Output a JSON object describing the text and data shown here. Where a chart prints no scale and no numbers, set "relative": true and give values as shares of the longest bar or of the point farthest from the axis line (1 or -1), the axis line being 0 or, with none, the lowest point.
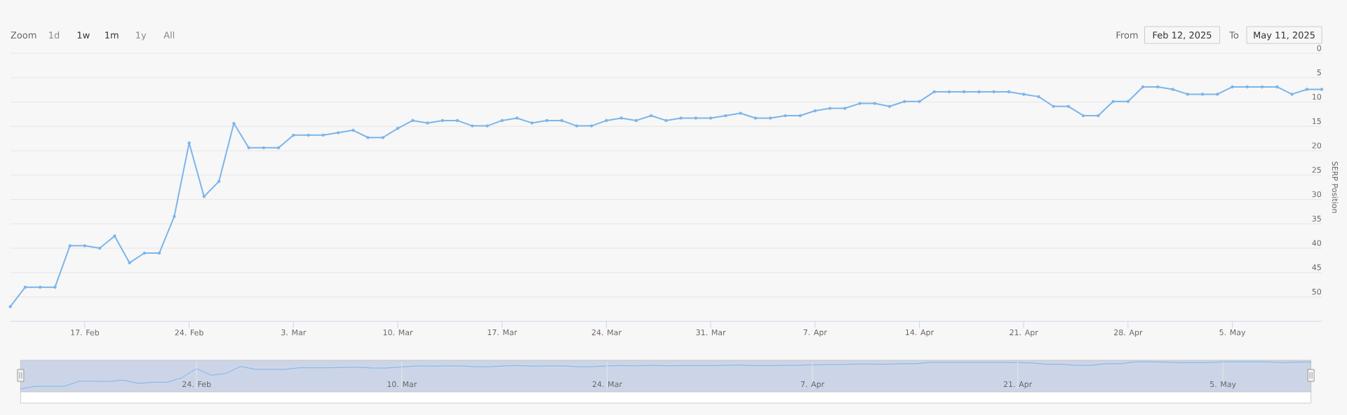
{
  "chart_data": [
    {
      "type": "line",
      "ylabel": "SERP Position",
      "x": [
        "2025-02-12",
        "2025-02-13",
        "2025-02-14",
        "2025-02-15",
        "2025-02-16",
        "2025-02-17",
        "2025-02-18",
        "2025-02-19",
        "2025-02-20",
        "2025-02-21",
        "2025-02-22",
        "2025-02-23",
        "2025-02-24",
        "2025-02-25",
        "2025-02-26",
        "2025-02-27",
        "2025-02-28",
        "2025-03-01",
        "2025-03-02",
        "2025-03-03",
        "2025-03-04",
        "2025-03-05",
        "2025-03-06",
        "2025-03-07",
        "2025-03-08",
        "2025-03-09",
        "2025-03-10",
        "2025-03-11",
        "2025-03-12",
        "2025-03-13",
        "2025-03-14",
        "2025-03-15",
        "2025-03-16",
        "2025-03-17",
        "2025-03-18",
        "2025-03-19",
        "2025-03-20",
        "2025-03-21",
        "2025-03-22",
        "2025-03-23",
        "2025-03-24",
        "2025-03-25",
        "2025-03-26",
        "2025-03-27",
        "2025-03-28",
        "2025-03-29",
        "2025-03-30",
        "2025-03-31",
        "2025-04-01",
        "2025-04-02",
        "2025-04-03",
        "2025-04-04",
        "2025-04-05",
        "2025-04-06",
        "2025-04-07",
        "2025-04-08",
        "2025-04-09",
        "2025-04-10",
        "2025-04-11",
        "2025-04-12",
        "2025-04-13",
        "2025-04-14",
        "2025-04-15",
        "2025-04-16",
        "2025-04-17",
        "2025-04-18",
        "2025-04-19",
        "2025-04-20",
        "2025-04-21",
        "2025-04-22",
        "2025-04-23",
        "2025-04-24",
        "2025-04-25",
        "2025-04-26",
        "2025-04-27",
        "2025-04-28",
        "2025-04-29",
        "2025-04-30",
        "2025-05-01",
        "2025-05-02",
        "2025-05-03",
        "2025-05-04",
        "2025-05-05",
        "2025-05-06",
        "2025-05-07",
        "2025-05-08",
        "2025-05-09",
        "2025-05-10",
        "2025-05-11"
      ],
      "series": [
        {
          "color": "#7cb5ec",
          "values": [
            52.0,
            48.0,
            48.0,
            48.0,
            39.5,
            39.5,
            40.0,
            37.5,
            43.0,
            41.0,
            41.0,
            33.5,
            18.4,
            29.4,
            26.3,
            14.4,
            19.4,
            19.4,
            19.4,
            16.8,
            16.8,
            16.8,
            16.3,
            15.8,
            17.3,
            17.3,
            15.4,
            13.8,
            14.3,
            13.8,
            13.8,
            14.9,
            14.9,
            13.8,
            13.3,
            14.3,
            13.8,
            13.8,
            14.9,
            14.9,
            13.8,
            13.3,
            13.8,
            12.8,
            13.8,
            13.3,
            13.3,
            13.3,
            12.8,
            12.3,
            13.3,
            13.3,
            12.8,
            12.8,
            11.8,
            11.3,
            11.3,
            10.3,
            10.3,
            10.9,
            9.9,
            9.9,
            7.9,
            7.9,
            7.9,
            7.9,
            7.9,
            7.9,
            8.4,
            8.9,
            10.9,
            10.9,
            12.8,
            12.8,
            9.9,
            9.9,
            6.9,
            6.9,
            7.4,
            8.4,
            8.4,
            8.4,
            6.9,
            6.9,
            6.9,
            6.9,
            8.4,
            7.4,
            7.4
          ]
        }
      ],
      "xlim": [
        "2025-02-12",
        "2025-05-11"
      ],
      "ylim": [
        55,
        0
      ],
      "xticks": [
        {
          "value": "2025-02-17",
          "label": "17. Feb"
        },
        {
          "value": "2025-02-24",
          "label": "24. Feb"
        },
        {
          "value": "2025-03-03",
          "label": "3. Mar"
        },
        {
          "value": "2025-03-10",
          "label": "10. Mar"
        },
        {
          "value": "2025-03-17",
          "label": "17. Mar"
        },
        {
          "value": "2025-03-24",
          "label": "24. Mar"
        },
        {
          "value": "2025-03-31",
          "label": "31. Mar"
        },
        {
          "value": "2025-04-07",
          "label": "7. Apr"
        },
        {
          "value": "2025-04-14",
          "label": "14. Apr"
        },
        {
          "value": "2025-04-21",
          "label": "21. Apr"
        },
        {
          "value": "2025-04-28",
          "label": "28. Apr"
        },
        {
          "value": "2025-05-05",
          "label": "5. May"
        }
      ],
      "yticks": [
        0,
        5,
        10,
        15,
        20,
        25,
        30,
        35,
        40,
        45,
        50
      ],
      "grid": "y",
      "marker": "circle",
      "annotations": [
        "Zoom",
        "1d",
        "1w",
        "1m",
        "1y",
        "All",
        "From",
        "Feb 12, 2025",
        "To",
        "May 11, 2025"
      ]
    },
    {
      "type": "line",
      "relative": true,
      "x": [
        "2025-02-12",
        "2025-02-13",
        "2025-02-14",
        "2025-02-15",
        "2025-02-16",
        "2025-02-17",
        "2025-02-18",
        "2025-02-19",
        "2025-02-20",
        "2025-02-21",
        "2025-02-22",
        "2025-02-23",
        "2025-02-24",
        "2025-02-25",
        "2025-02-26",
        "2025-02-27",
        "2025-02-28",
        "2025-03-01",
        "2025-03-02",
        "2025-03-03",
        "2025-03-04",
        "2025-03-05",
        "2025-03-06",
        "2025-03-07",
        "2025-03-08",
        "2025-03-09",
        "2025-03-10",
        "2025-03-11",
        "2025-03-12",
        "2025-03-13",
        "2025-03-14",
        "2025-03-15",
        "2025-03-16",
        "2025-03-17",
        "2025-03-18",
        "2025-03-19",
        "2025-03-20",
        "2025-03-21",
        "2025-03-22",
        "2025-03-23",
        "2025-03-24",
        "2025-03-25",
        "2025-03-26",
        "2025-03-27",
        "2025-03-28",
        "2025-03-29",
        "2025-03-30",
        "2025-03-31",
        "2025-04-01",
        "2025-04-02",
        "2025-04-03",
        "2025-04-04",
        "2025-04-05",
        "2025-04-06",
        "2025-04-07",
        "2025-04-08",
        "2025-04-09",
        "2025-04-10",
        "2025-04-11",
        "2025-04-12",
        "2025-04-13",
        "2025-04-14",
        "2025-04-15",
        "2025-04-16",
        "2025-04-17",
        "2025-04-18",
        "2025-04-19",
        "2025-04-20",
        "2025-04-21",
        "2025-04-22",
        "2025-04-23",
        "2025-04-24",
        "2025-04-25",
        "2025-04-26",
        "2025-04-27",
        "2025-04-28",
        "2025-04-29",
        "2025-04-30",
        "2025-05-01",
        "2025-05-02",
        "2025-05-03",
        "2025-05-04",
        "2025-05-05",
        "2025-05-06",
        "2025-05-07",
        "2025-05-08",
        "2025-05-09",
        "2025-05-10",
        "2025-05-11"
      ],
      "series": [
        {
          "color": "#7cb5ec",
          "values": [
            0,
            0.09,
            0.09,
            0.09,
            0.28,
            0.28,
            0.27,
            0.32,
            0.2,
            0.24,
            0.24,
            0.41,
            0.75,
            0.5,
            0.57,
            0.83,
            0.72,
            0.72,
            0.72,
            0.78,
            0.78,
            0.78,
            0.79,
            0.8,
            0.77,
            0.77,
            0.81,
            0.85,
            0.84,
            0.85,
            0.85,
            0.82,
            0.82,
            0.85,
            0.86,
            0.84,
            0.85,
            0.85,
            0.82,
            0.82,
            0.85,
            0.86,
            0.85,
            0.87,
            0.85,
            0.86,
            0.86,
            0.86,
            0.87,
            0.88,
            0.86,
            0.86,
            0.87,
            0.87,
            0.89,
            0.9,
            0.9,
            0.92,
            0.92,
            0.91,
            0.93,
            0.93,
            0.98,
            0.98,
            0.98,
            0.98,
            0.98,
            0.98,
            0.97,
            0.96,
            0.91,
            0.91,
            0.87,
            0.87,
            0.93,
            0.93,
            1,
            1,
            0.99,
            0.97,
            0.97,
            0.97,
            1,
            1,
            1,
            1,
            0.97,
            0.99,
            0.99
          ]
        }
      ],
      "xlim": [
        "2025-02-12",
        "2025-05-11"
      ],
      "xticks": [
        {
          "value": "2025-02-24",
          "label": "24. Feb"
        },
        {
          "value": "2025-03-10",
          "label": "10. Mar"
        },
        {
          "value": "2025-03-24",
          "label": "24. Mar"
        },
        {
          "value": "2025-04-07",
          "label": "7. Apr"
        },
        {
          "value": "2025-04-21",
          "label": "21. Apr"
        },
        {
          "value": "2025-05-05",
          "label": "5. May"
        }
      ],
      "grid": "x",
      "tick_labels": "x",
      "bands": [
        {
          "axis": "x",
          "from": "2025-02-12",
          "to": "2025-05-11",
          "color": "#ccd5e7"
        }
      ]
    }
  ]
}
